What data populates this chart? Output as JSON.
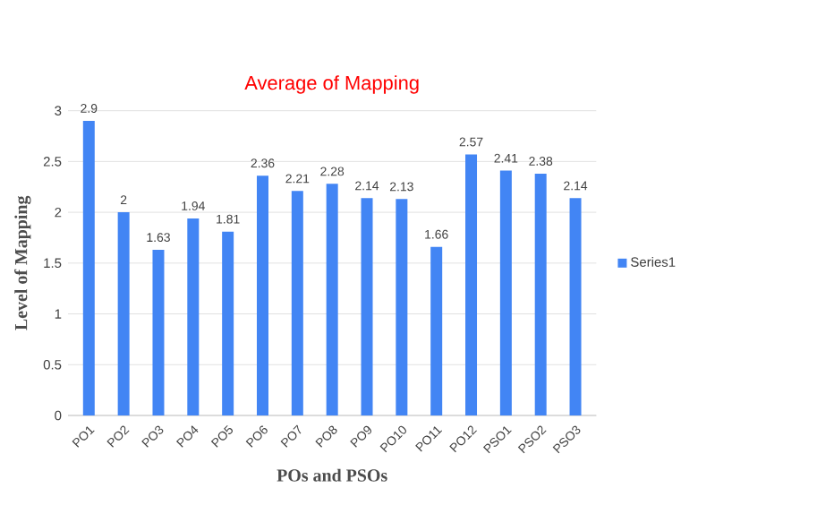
{
  "chart_data": {
    "type": "bar",
    "title": "Average of Mapping",
    "xlabel": "POs and PSOs",
    "ylabel": "Level of Mapping",
    "categories": [
      "PO1",
      "PO2",
      "PO3",
      "PO4",
      "PO5",
      "PO6",
      "PO7",
      "PO8",
      "PO9",
      "PO10",
      "PO11",
      "PO12",
      "PSO1",
      "PSO2",
      "PSO3"
    ],
    "series": [
      {
        "name": "Series1",
        "color": "#4285f4",
        "values": [
          2.9,
          2,
          1.63,
          1.94,
          1.81,
          2.36,
          2.21,
          2.28,
          2.14,
          2.13,
          1.66,
          2.57,
          2.41,
          2.38,
          2.14
        ]
      }
    ],
    "ylim": [
      0,
      3
    ],
    "yticks": [
      0,
      0.5,
      1,
      1.5,
      2,
      2.5,
      3
    ],
    "grid": "y",
    "legend": "right",
    "data_labels": true
  }
}
